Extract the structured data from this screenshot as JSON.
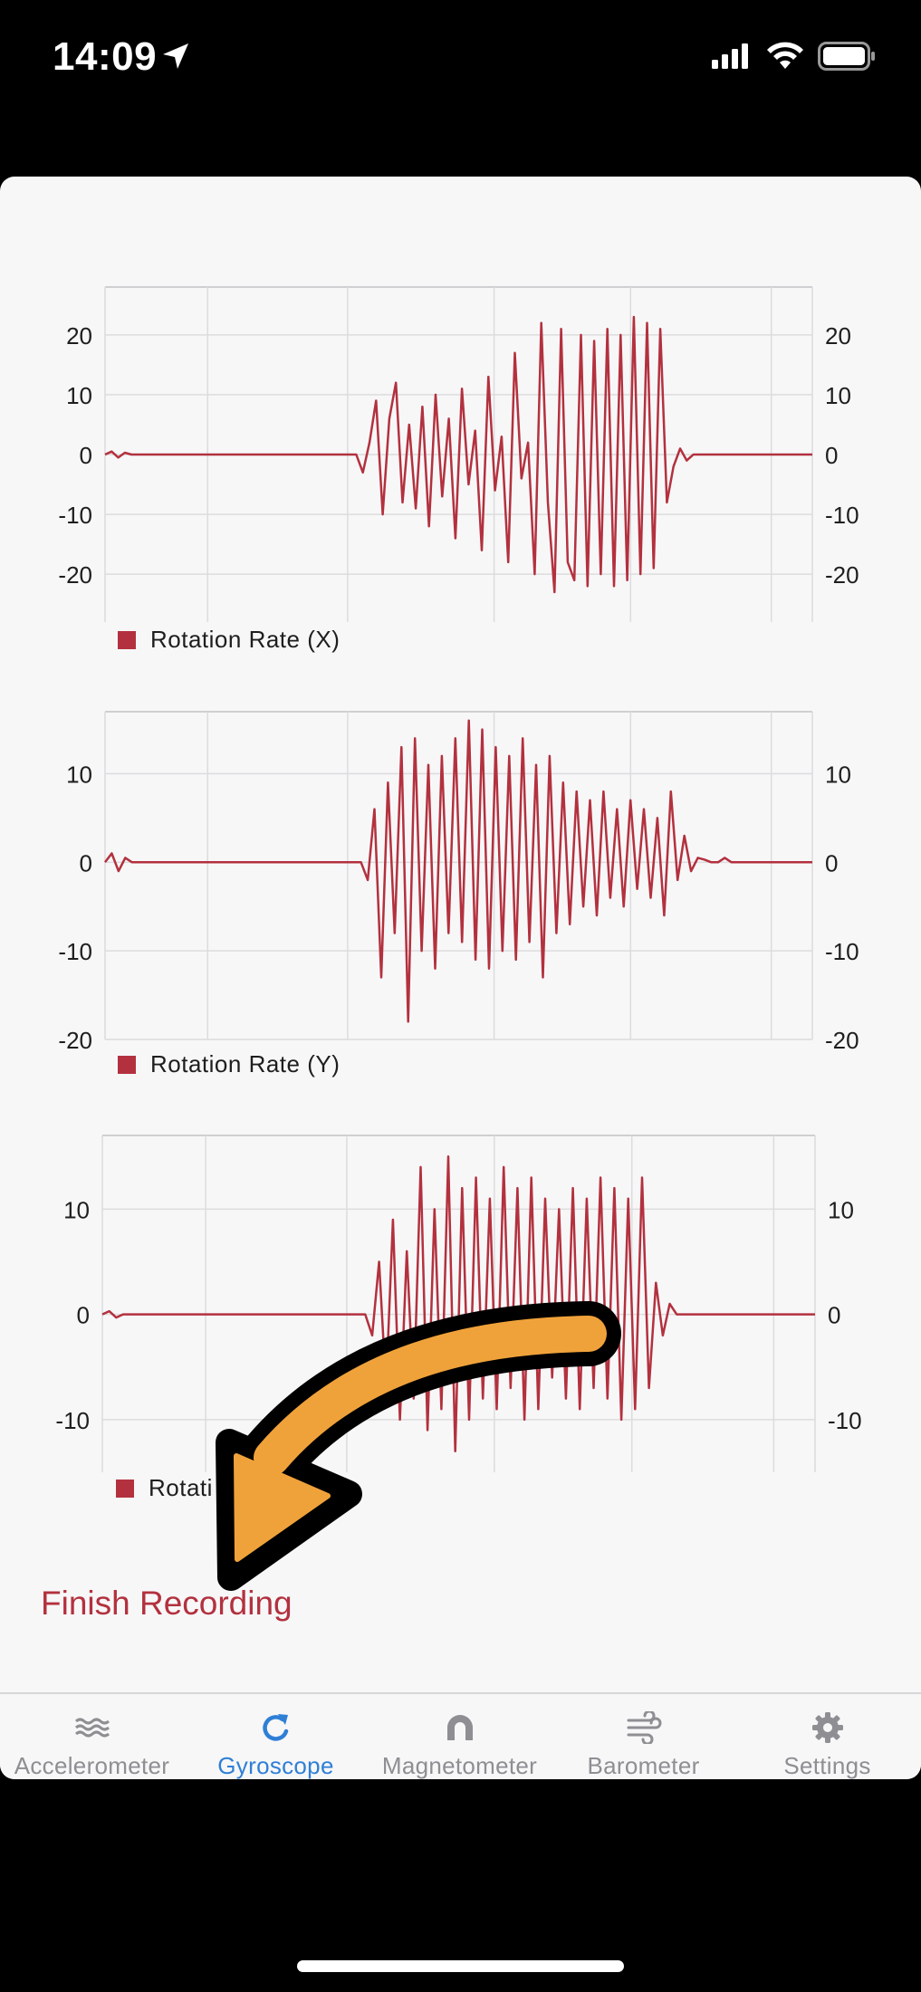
{
  "status_bar": {
    "time": "14:09",
    "icons": [
      "location-arrow-icon",
      "cellular-signal-icon",
      "wifi-icon",
      "battery-icon"
    ]
  },
  "charts": [
    {
      "legend": "Rotation Rate (X)",
      "left_ticks": [
        "20",
        "10",
        "0",
        "-10",
        "-20"
      ],
      "right_ticks": [
        "20",
        "10",
        "0",
        "-10",
        "-20"
      ]
    },
    {
      "legend": "Rotation Rate (Y)",
      "left_ticks": [
        "10",
        "0",
        "-10",
        "-20"
      ],
      "right_ticks": [
        "10",
        "0",
        "-10",
        "-20"
      ]
    },
    {
      "legend": "Rotati",
      "left_ticks": [
        "10",
        "0",
        "-10"
      ],
      "right_ticks": [
        "10",
        "0",
        "-10"
      ]
    }
  ],
  "chart_data": [
    {
      "type": "line",
      "series": [
        {
          "name": "Rotation Rate (X)",
          "values": [
            0,
            0.5,
            -0.5,
            0.3,
            0,
            0,
            0,
            0,
            0,
            0,
            0,
            0,
            0,
            0,
            0,
            0,
            0,
            0,
            0,
            0,
            0,
            0,
            0,
            0,
            0,
            0,
            0,
            0,
            0,
            0,
            0,
            0,
            0,
            0,
            0,
            0,
            0,
            0,
            0,
            -3,
            2,
            9,
            -10,
            6,
            12,
            -8,
            5,
            -9,
            8,
            -12,
            10,
            -7,
            6,
            -14,
            11,
            -5,
            4,
            -16,
            13,
            -6,
            3,
            -18,
            17,
            -4,
            2,
            -20,
            22,
            -8,
            -23,
            21,
            -18,
            -21,
            20,
            -22,
            19,
            -20,
            21,
            -22,
            20,
            -21,
            23,
            -20,
            22,
            -19,
            21,
            -8,
            -2,
            1,
            -1,
            0,
            0,
            0,
            0,
            0,
            0,
            0,
            0,
            0,
            0,
            0,
            0,
            0,
            0,
            0,
            0,
            0,
            0,
            0
          ]
        }
      ],
      "ylim": [
        -28,
        28
      ],
      "yticks": [
        20,
        10,
        0,
        -10,
        -20
      ],
      "colors": {
        "line": "#b3313e"
      }
    },
    {
      "type": "line",
      "series": [
        {
          "name": "Rotation Rate (Y)",
          "values": [
            0,
            1,
            -1,
            0.5,
            0,
            0,
            0,
            0,
            0,
            0,
            0,
            0,
            0,
            0,
            0,
            0,
            0,
            0,
            0,
            0,
            0,
            0,
            0,
            0,
            0,
            0,
            0,
            0,
            0,
            0,
            0,
            0,
            0,
            0,
            0,
            0,
            0,
            0,
            0,
            -2,
            6,
            -13,
            9,
            -8,
            13,
            -18,
            14,
            -10,
            11,
            -12,
            12,
            -8,
            14,
            -9,
            16,
            -11,
            15,
            -12,
            13,
            -10,
            12,
            -11,
            14,
            -9,
            11,
            -13,
            12,
            -8,
            9,
            -7,
            8,
            -5,
            7,
            -6,
            8,
            -4,
            6,
            -5,
            7,
            -3,
            6,
            -4,
            5,
            -6,
            8,
            -2,
            3,
            -1,
            0.5,
            0.3,
            0,
            0,
            0.5,
            0,
            0,
            0,
            0,
            0,
            0,
            0,
            0,
            0,
            0,
            0,
            0,
            0
          ]
        }
      ],
      "ylim": [
        -20,
        17
      ],
      "yticks": [
        10,
        0,
        -10,
        -20
      ],
      "colors": {
        "line": "#b3313e"
      }
    },
    {
      "type": "line",
      "series": [
        {
          "name": "Rotati",
          "values": [
            0,
            0.3,
            -0.3,
            0,
            0,
            0,
            0,
            0,
            0,
            0,
            0,
            0,
            0,
            0,
            0,
            0,
            0,
            0,
            0,
            0,
            0,
            0,
            0,
            0,
            0,
            0,
            0,
            0,
            0,
            0,
            0,
            0,
            0,
            0,
            0,
            0,
            0,
            0,
            0,
            -2,
            5,
            -7,
            9,
            -10,
            6,
            -8,
            14,
            -11,
            10,
            -9,
            15,
            -13,
            12,
            -10,
            13,
            -8,
            11,
            -9,
            14,
            -7,
            12,
            -10,
            13,
            -9,
            11,
            -6,
            10,
            -8,
            12,
            -9,
            11,
            -7,
            13,
            -8,
            12,
            -10,
            11,
            -9,
            13,
            -7,
            3,
            -2,
            1,
            0,
            0,
            0,
            0,
            0,
            0,
            0,
            0,
            0,
            0,
            0,
            0,
            0,
            0,
            0,
            0,
            0,
            0,
            0,
            0,
            0
          ]
        }
      ],
      "ylim": [
        -15,
        17
      ],
      "yticks": [
        10,
        0,
        -10
      ],
      "colors": {
        "line": "#b3313e"
      }
    }
  ],
  "finish_label": "Finish Recording",
  "tabs": [
    {
      "label": "Accelerometer",
      "icon": "waves-icon"
    },
    {
      "label": "Gyroscope",
      "icon": "rotate-icon"
    },
    {
      "label": "Magnetometer",
      "icon": "magnet-icon"
    },
    {
      "label": "Barometer",
      "icon": "wind-icon"
    },
    {
      "label": "Settings",
      "icon": "gear-icon"
    }
  ],
  "active_tab": "Gyroscope",
  "colors": {
    "accent": "#2f7fd6",
    "line": "#b3313e",
    "arrow": "#f0a23a"
  }
}
